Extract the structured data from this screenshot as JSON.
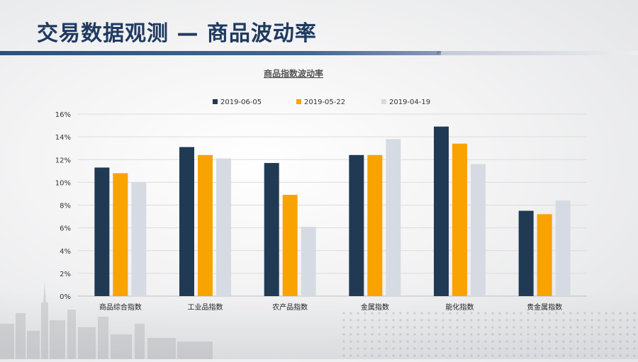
{
  "page": {
    "title": "交易数据观测 — 商品波动率"
  },
  "chart_data": {
    "type": "bar",
    "title": "商品指数波动率",
    "categories": [
      "商品综合指数",
      "工业品指数",
      "农产品指数",
      "金属指数",
      "能化指数",
      "贵金属指数"
    ],
    "series": [
      {
        "name": "2019-06-05",
        "color": "#203a54",
        "values": [
          0.113,
          0.131,
          0.117,
          0.124,
          0.149,
          0.075
        ]
      },
      {
        "name": "2019-05-22",
        "color": "#f8a300",
        "values": [
          0.108,
          0.124,
          0.089,
          0.124,
          0.134,
          0.072
        ]
      },
      {
        "name": "2019-04-19",
        "color": "#d6dbe3",
        "values": [
          0.1,
          0.121,
          0.061,
          0.138,
          0.116,
          0.084
        ]
      }
    ],
    "yticks": [
      "0%",
      "2%",
      "4%",
      "6%",
      "8%",
      "10%",
      "12%",
      "14%",
      "16%"
    ],
    "ylim": [
      0,
      0.16
    ],
    "ylabel": "",
    "xlabel": "",
    "grid": true,
    "legend": "top-center"
  }
}
